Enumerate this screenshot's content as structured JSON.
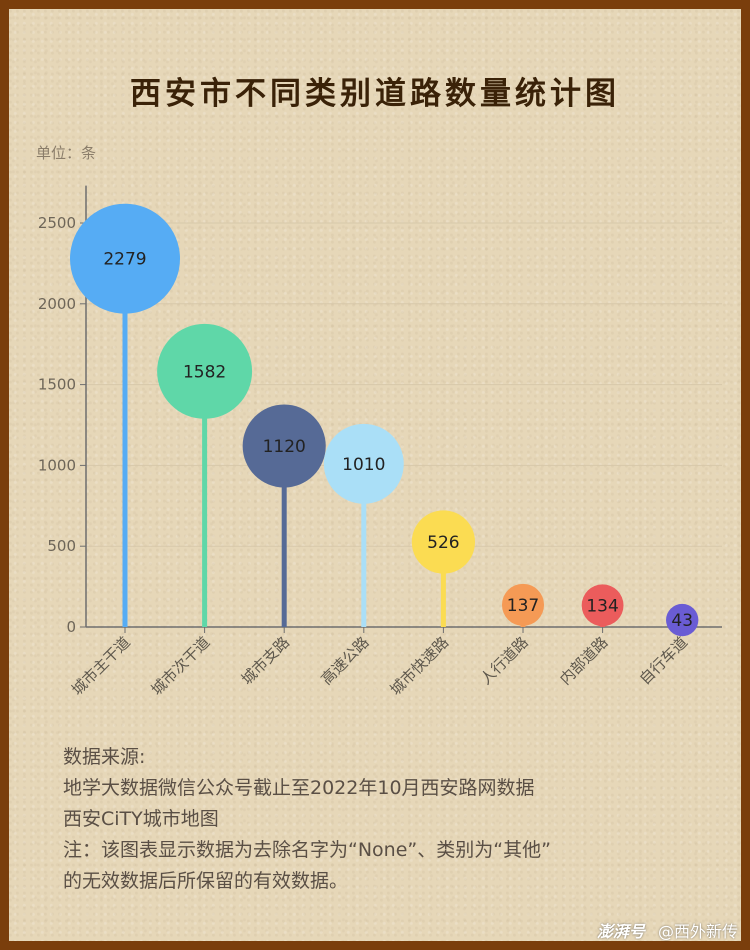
{
  "title": "西安市不同类别道路数量统计图",
  "unit_label": "单位：条",
  "chart_data": {
    "type": "bar",
    "title": "西安市不同类别道路数量统计图",
    "ylabel": "单位：条",
    "categories": [
      "城市主干道",
      "城市次干道",
      "城市支路",
      "高速公路",
      "城市快速路",
      "人行道路",
      "内部道路",
      "自行车道"
    ],
    "values": [
      2279,
      1582,
      1120,
      1010,
      526,
      137,
      134,
      43
    ],
    "colors": [
      "#56acf4",
      "#5fd7a8",
      "#566a96",
      "#aadff7",
      "#fbdc52",
      "#f59a55",
      "#eb5c5c",
      "#6a5cd4"
    ],
    "ylim": [
      0,
      2700
    ],
    "yticks": [
      0,
      500,
      1000,
      1500,
      2000,
      2500
    ],
    "grid": true,
    "legend": "none"
  },
  "notes": {
    "source_heading": "数据来源:",
    "source_line1": "地学大数据微信公众号截止至2022年10月西安路网数据",
    "source_line2": "西安CiTY城市地图",
    "note_line1": "注：该图表显示数据为去除名字为“None”、类别为“其他”",
    "note_line2": "的无效数据后所保留的有效数据。"
  },
  "watermark": {
    "logo": "澎湃号",
    "account": "@西外新传"
  }
}
